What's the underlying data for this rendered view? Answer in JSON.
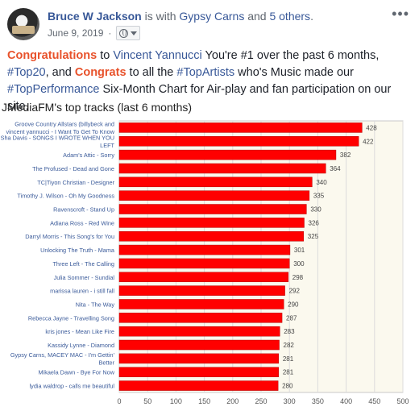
{
  "post": {
    "author": "Bruce W Jackson",
    "with_text": " is with ",
    "with_name": "Gypsy Carns",
    "and_text": " and ",
    "others": "5 others",
    "period": ".",
    "date": "June 9, 2019",
    "dot": "·",
    "more_icon": "ellipsis-icon",
    "text": {
      "congrats1": "Congratulations",
      "to": " to ",
      "name": "Vincent Yannucci",
      "rest1": " You're #1 over the past 6 months,",
      "tag1": "#Top20",
      "and": ", and ",
      "congrats2": "Congrats",
      "rest2": " to all the ",
      "tag2": "#TopArtists",
      "rest3": " who's Music made our",
      "tag3": "#TopPerformance",
      "rest4": " Six-Month Chart for Air-play and fan participation on our site."
    }
  },
  "chart_data": {
    "type": "bar",
    "orientation": "horizontal",
    "title": "JMediaFM's top tracks (last 6 months)",
    "categories": [
      "Groove Country Allstars (billybeck and vincent yannucci - I Want To Get To Know",
      "Sha Davis - SONGS I WROTE WHEN YOU LEFT",
      "Adam's Attic - Sorry",
      "The Profused - Dead and Gone",
      "TC|Tiyon Christian - Designer",
      "Timothy J. Wilson - Oh My Goodness",
      "Ravenscroft - Stand Up",
      "Adiana Ross - Red Wine",
      "Darryl Morris - This Song's for You",
      "Unlocking The Truth - Mama",
      "Three Left - The Calling",
      "Julia Sommer - Sundial",
      "marissa lauren - i still fall",
      "Nita - The Way",
      "Rebecca Jayne - Travelling Song",
      "kris jones - Mean Like Fire",
      "Kassidy Lynne - Diamond",
      "Gypsy Carns, MACEY MAC - I'm Gettin' Better",
      "Mikaela Dawn - Bye For Now",
      "lydia waldrop - calls me beautiful"
    ],
    "label_lines": [
      [
        "Groove Country Allstars (billybeck and",
        "vincent yannucci - I Want To Get To Know"
      ],
      [
        "Sha Davis - SONGS I WROTE WHEN YOU",
        "LEFT"
      ],
      [
        "Adam's Attic - Sorry"
      ],
      [
        "The Profused - Dead and Gone"
      ],
      [
        "TC|Tiyon Christian - Designer"
      ],
      [
        "Timothy J. Wilson - Oh My Goodness"
      ],
      [
        "Ravenscroft - Stand Up"
      ],
      [
        "Adiana Ross - Red Wine"
      ],
      [
        "Darryl Morris - This Song's for You"
      ],
      [
        "Unlocking The Truth - Mama"
      ],
      [
        "Three Left - The Calling"
      ],
      [
        "Julia Sommer - Sundial"
      ],
      [
        "marissa lauren - i still fall"
      ],
      [
        "Nita - The Way"
      ],
      [
        "Rebecca Jayne - Travelling Song"
      ],
      [
        "kris jones - Mean Like Fire"
      ],
      [
        "Kassidy Lynne - Diamond"
      ],
      [
        "Gypsy Carns, MACEY MAC - I'm Gettin'",
        "Better"
      ],
      [
        "Mikaela Dawn - Bye For Now"
      ],
      [
        "lydia waldrop - calls me beautiful"
      ]
    ],
    "values": [
      428,
      422,
      382,
      364,
      340,
      335,
      330,
      326,
      325,
      301,
      300,
      298,
      292,
      290,
      287,
      283,
      282,
      281,
      281,
      280
    ],
    "xlim": [
      0,
      500
    ],
    "xticks": [
      0,
      50,
      100,
      150,
      200,
      250,
      300,
      350,
      400,
      450,
      500
    ],
    "grid": true,
    "legend": "none",
    "bar_color": "#ff0000",
    "label_color": "#3b5b9a",
    "plot_bg": "#fbf9ee"
  }
}
